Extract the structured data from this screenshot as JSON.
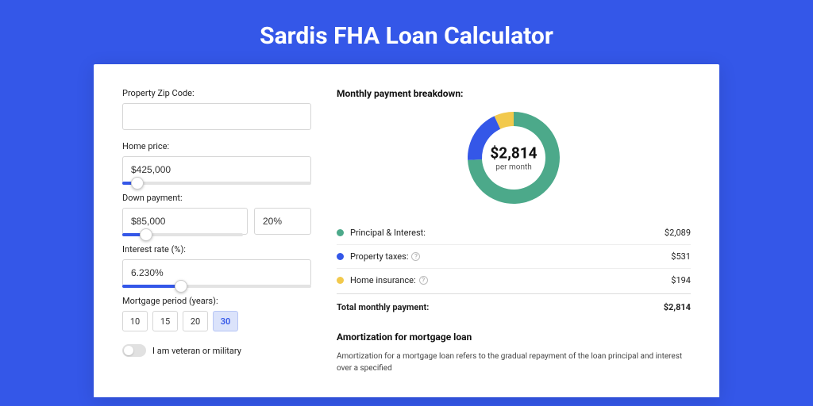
{
  "page": {
    "title": "Sardis FHA Loan Calculator",
    "background": "#3457e8"
  },
  "form": {
    "zip": {
      "label": "Property Zip Code:",
      "value": ""
    },
    "home_price": {
      "label": "Home price:",
      "value": "$425,000",
      "slider_pct": 8
    },
    "down_payment": {
      "label": "Down payment:",
      "amount": "$85,000",
      "percent": "20%",
      "slider_pct": 20
    },
    "interest_rate": {
      "label": "Interest rate (%):",
      "value": "6.230%",
      "slider_pct": 31
    },
    "mortgage_period": {
      "label": "Mortgage period (years):",
      "options": [
        "10",
        "15",
        "20",
        "30"
      ],
      "active_index": 3
    },
    "veteran": {
      "label": "I am veteran or military",
      "checked": false
    }
  },
  "breakdown": {
    "title": "Monthly payment breakdown:",
    "center_amount": "$2,814",
    "center_sub": "per month",
    "donut": {
      "size": 120,
      "thickness": 18,
      "slices": [
        {
          "color": "#4ca98a",
          "pct": 74.2
        },
        {
          "color": "#3457e8",
          "pct": 18.9
        },
        {
          "color": "#f2c94c",
          "pct": 6.9
        }
      ]
    },
    "rows": [
      {
        "color": "#4ca98a",
        "label": "Principal & Interest:",
        "value": "$2,089",
        "info": false
      },
      {
        "color": "#3457e8",
        "label": "Property taxes:",
        "value": "$531",
        "info": true
      },
      {
        "color": "#f2c94c",
        "label": "Home insurance:",
        "value": "$194",
        "info": true
      }
    ],
    "total": {
      "label": "Total monthly payment:",
      "value": "$2,814"
    }
  },
  "amortization": {
    "title": "Amortization for mortgage loan",
    "text": "Amortization for a mortgage loan refers to the gradual repayment of the loan principal and interest over a specified"
  }
}
